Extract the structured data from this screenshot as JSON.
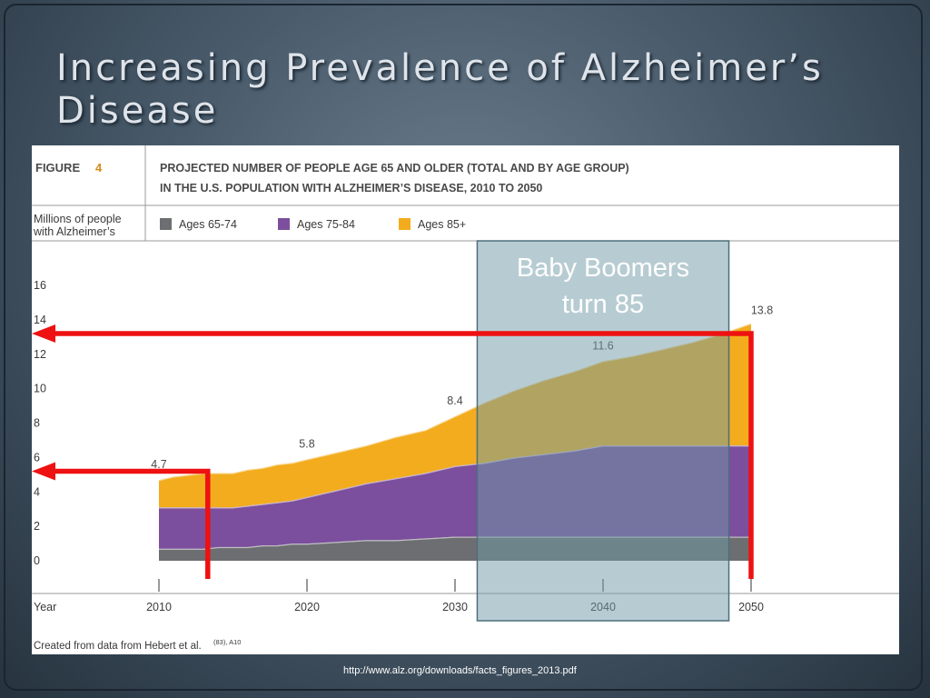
{
  "slide": {
    "title_line1": "Increasing Prevalence of Alzheimer’s",
    "title_line2": "Disease",
    "source_url": "http://www.alz.org/downloads/facts_figures_2013.pdf"
  },
  "figure": {
    "label": "FIGURE",
    "number": "4",
    "heading_line1": "PROJECTED NUMBER OF PEOPLE AGE 65 AND OLDER (TOTAL AND BY AGE GROUP)",
    "heading_line2": "IN THE U.S. POPULATION WITH ALZHEIMER’S DISEASE, 2010 TO 2050",
    "credit": "Created from data from Hebert et al.",
    "credit_superscript": "(83), A10"
  },
  "overlay": {
    "band_label_line1": "Baby Boomers",
    "band_label_line2": "turn 85",
    "band_x_range": [
      2031.5,
      2048.5
    ],
    "band_color": "#6f99a6",
    "arrow_color": "#ee1111",
    "arrows": [
      {
        "name": "arrow-low",
        "year": 2013.3,
        "level": 5.2
      },
      {
        "name": "arrow-high",
        "year": 2050,
        "level": 13.2
      }
    ]
  },
  "chart_data": {
    "type": "area",
    "stacked": true,
    "ylabel_line1": "Millions of people",
    "ylabel_line2": "with Alzheimer’s",
    "xlabel": "Year",
    "xlim": [
      2010,
      2050
    ],
    "ylim": [
      0,
      16
    ],
    "x_ticks": [
      2010,
      2020,
      2030,
      2040,
      2050
    ],
    "y_ticks": [
      0,
      2,
      4,
      6,
      8,
      10,
      12,
      14,
      16
    ],
    "x": [
      2010,
      2011,
      2012,
      2013,
      2014,
      2015,
      2016,
      2017,
      2018,
      2019,
      2020,
      2022,
      2024,
      2026,
      2028,
      2030,
      2032,
      2034,
      2036,
      2038,
      2040,
      2042,
      2044,
      2046,
      2048,
      2050
    ],
    "series": [
      {
        "name": "Ages 65-74",
        "color": "#6d6e71",
        "values": [
          0.7,
          0.7,
          0.7,
          0.7,
          0.8,
          0.8,
          0.8,
          0.9,
          0.9,
          1.0,
          1.0,
          1.1,
          1.2,
          1.2,
          1.3,
          1.4,
          1.4,
          1.4,
          1.4,
          1.4,
          1.4,
          1.4,
          1.4,
          1.4,
          1.4,
          1.4
        ]
      },
      {
        "name": "Ages 75-84",
        "color": "#7b4f9d",
        "values": [
          2.4,
          2.4,
          2.4,
          2.4,
          2.3,
          2.3,
          2.4,
          2.4,
          2.5,
          2.5,
          2.7,
          3.0,
          3.3,
          3.6,
          3.8,
          4.1,
          4.3,
          4.6,
          4.8,
          5.0,
          5.3,
          5.3,
          5.3,
          5.3,
          5.3,
          5.3
        ]
      },
      {
        "name": "Ages 85+",
        "color": "#f2ac1d",
        "values": [
          1.6,
          1.8,
          1.9,
          2.0,
          2.0,
          2.0,
          2.1,
          2.1,
          2.2,
          2.2,
          2.2,
          2.2,
          2.2,
          2.4,
          2.5,
          2.9,
          3.5,
          3.9,
          4.3,
          4.6,
          4.9,
          5.2,
          5.6,
          6.0,
          6.5,
          7.1
        ]
      }
    ],
    "data_labels": [
      {
        "year": 2010,
        "value": 4.7,
        "text": "4.7"
      },
      {
        "year": 2020,
        "value": 5.8,
        "text": "5.8"
      },
      {
        "year": 2030,
        "value": 8.4,
        "text": "8.4"
      },
      {
        "year": 2040,
        "value": 11.6,
        "text": "11.6"
      },
      {
        "year": 2050,
        "value": 13.8,
        "text": "13.8"
      }
    ],
    "legend_placement": "top",
    "grid": false
  }
}
